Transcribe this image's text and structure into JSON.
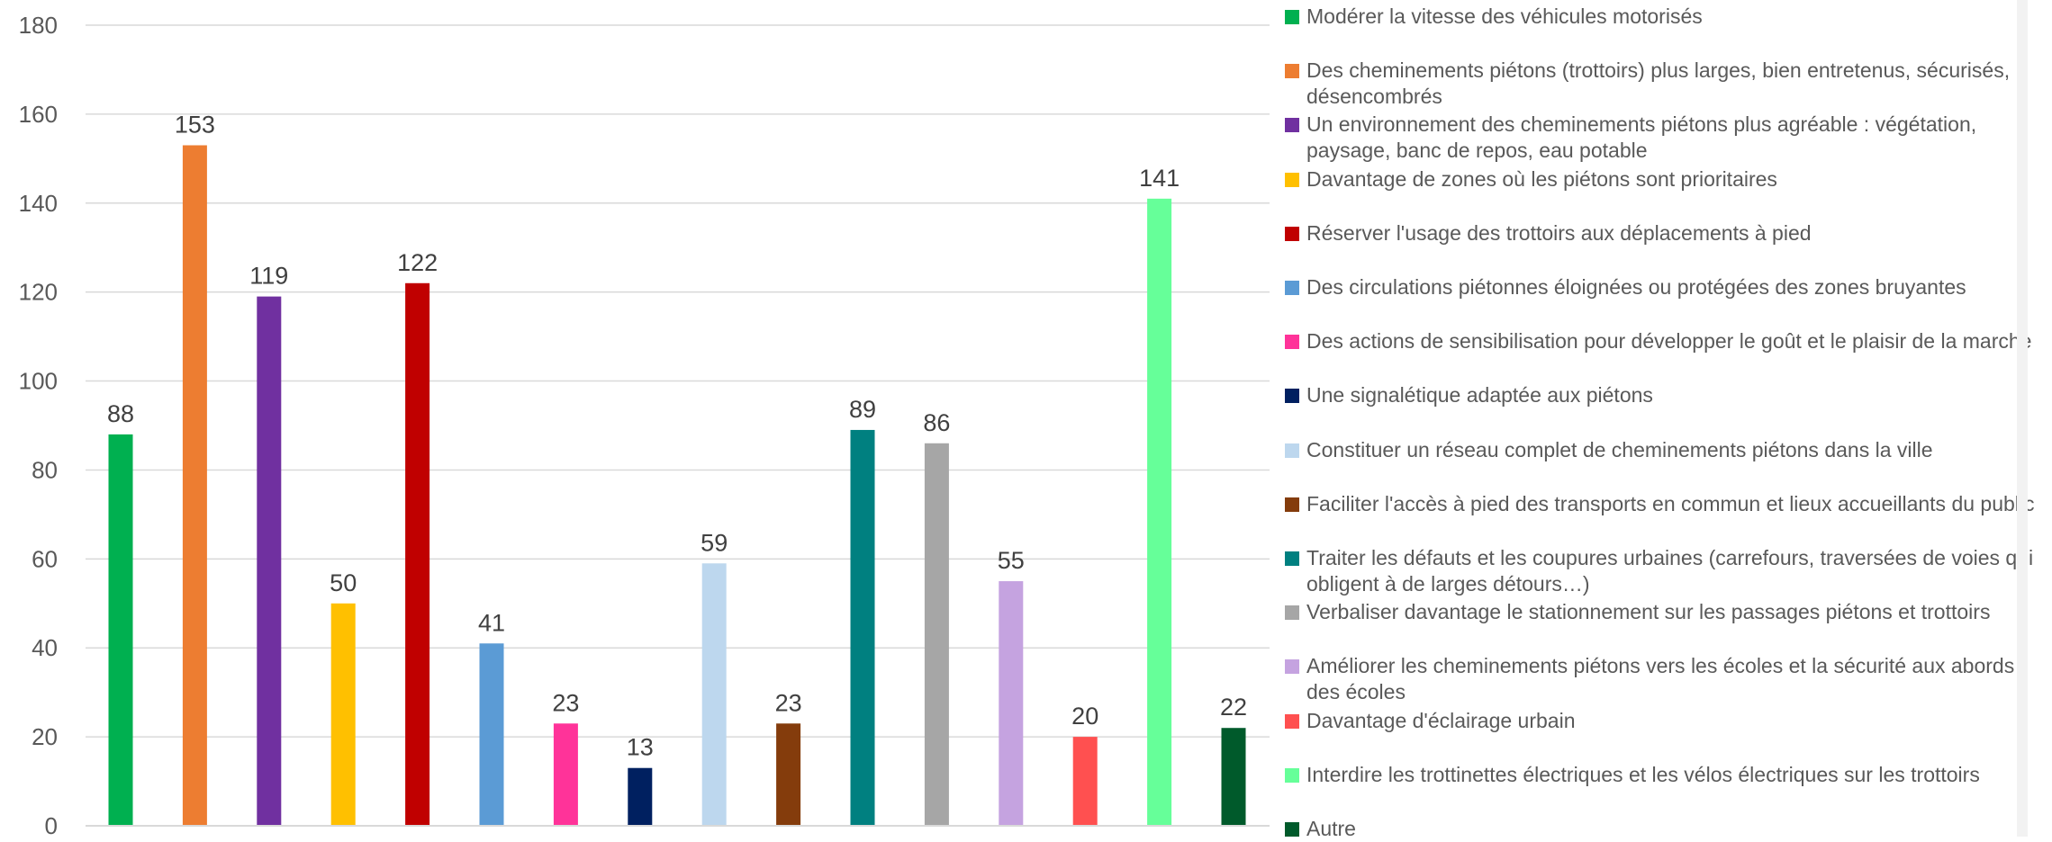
{
  "chart_data": {
    "type": "bar",
    "title": "",
    "xlabel": "",
    "ylabel": "",
    "ylim": [
      0,
      180
    ],
    "yticks": [
      0,
      20,
      40,
      60,
      80,
      100,
      120,
      140,
      160,
      180
    ],
    "grid": true,
    "legend_position": "right",
    "categories": [
      "Modérer la vitesse des véhicules motorisés",
      "Des cheminements piétons (trottoirs) plus larges, bien entretenus, sécurisés, désencombrés",
      "Un environnement des cheminements piétons plus agréable : végétation, paysage, banc de repos, eau potable",
      "Davantage de zones où les piétons sont prioritaires",
      "Réserver l'usage des trottoirs aux déplacements à pied",
      "Des circulations piétonnes éloignées ou protégées des zones bruyantes",
      "Des actions de sensibilisation pour développer le goût et le plaisir de la marche",
      "Une signalétique adaptée aux piétons",
      "Constituer un réseau complet de cheminements piétons dans la ville",
      "Faciliter l'accès à pied des transports en commun et lieux accueillants du public",
      "Traiter les défauts et les coupures urbaines (carrefours, traversées de voies qui obligent à de larges détours…)",
      "Verbaliser davantage le stationnement sur les passages piétons et trottoirs",
      "Améliorer les cheminements piétons vers les écoles et la sécurité aux abords des écoles",
      "Davantage d'éclairage urbain",
      "Interdire les trottinettes électriques et les vélos électriques sur les trottoirs",
      "Autre"
    ],
    "values": [
      88,
      153,
      119,
      50,
      122,
      41,
      23,
      13,
      59,
      23,
      89,
      86,
      55,
      20,
      141,
      22
    ],
    "colors": [
      "#00b050",
      "#ed7d31",
      "#7030a0",
      "#ffc000",
      "#c00000",
      "#5b9bd5",
      "#ff3399",
      "#002060",
      "#bdd7ee",
      "#843c0c",
      "#008080",
      "#a6a6a6",
      "#c5a3e0",
      "#ff5050",
      "#66ff99",
      "#005a2b"
    ]
  }
}
